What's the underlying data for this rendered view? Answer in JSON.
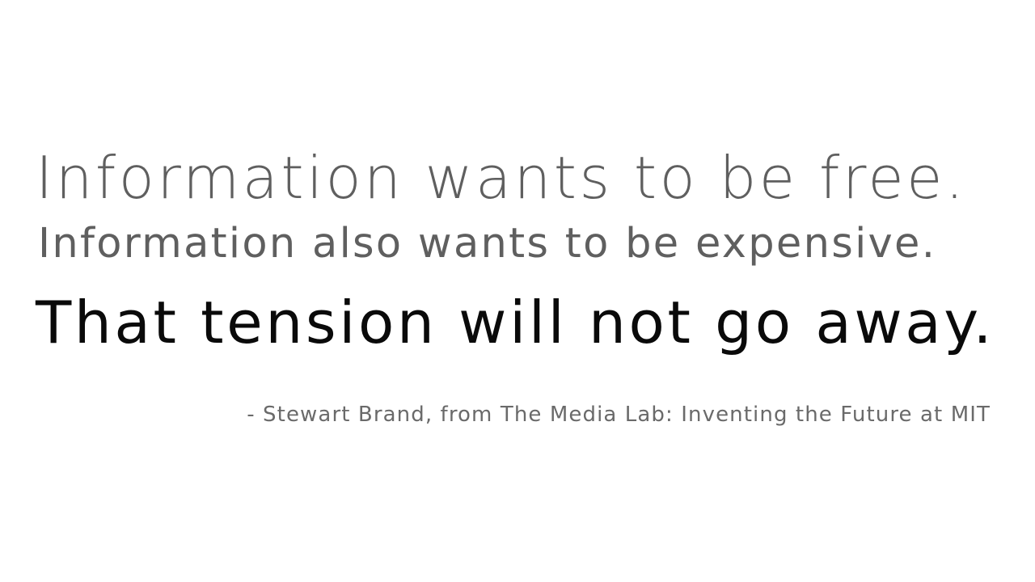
{
  "quote": {
    "line1": "Information wants to be free.",
    "line2": "Information also wants to be expensive.",
    "line3": "That tension will not go away.",
    "attribution": "- Stewart Brand, from The Media Lab: Inventing the Future at MIT"
  },
  "colors": {
    "background": "#ffffff",
    "secondary_text": "#5f5f5f",
    "primary_text": "#0a0a0a",
    "attribution_text": "#6a6a6a"
  }
}
